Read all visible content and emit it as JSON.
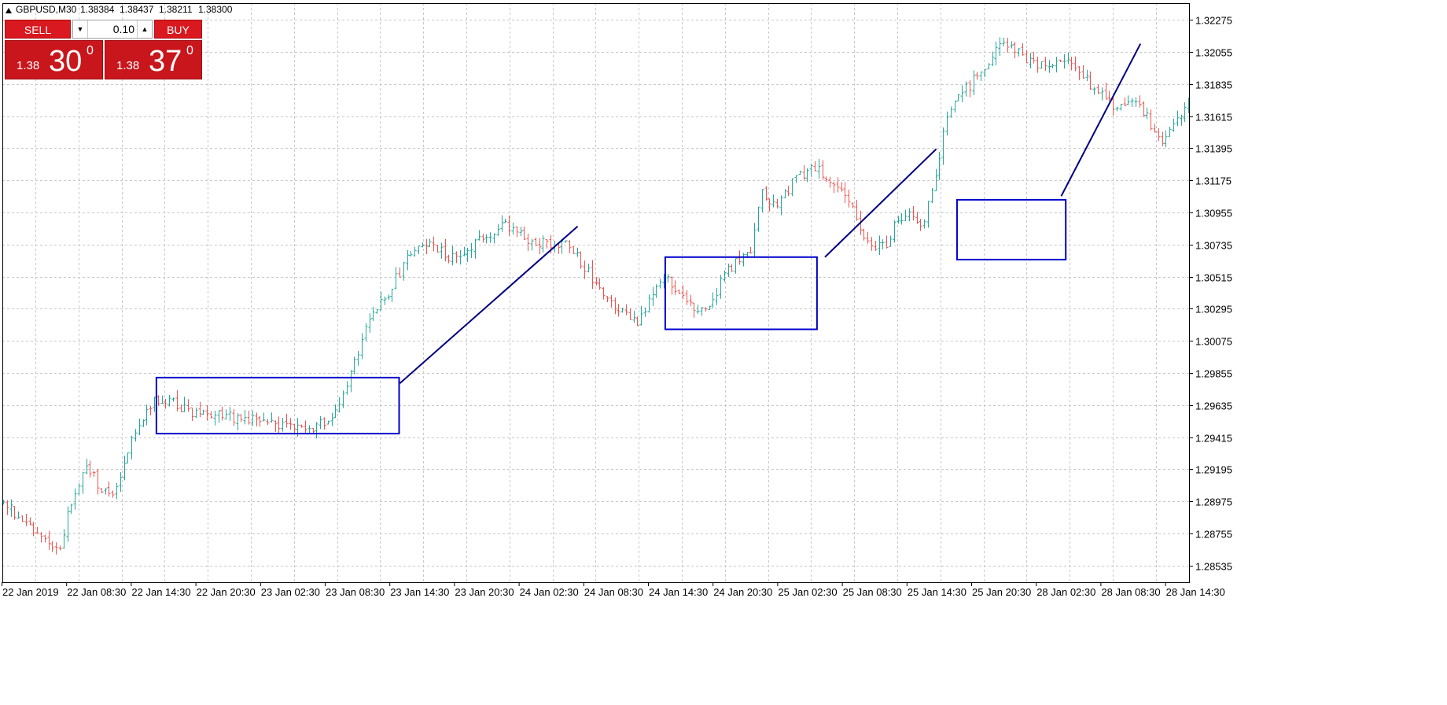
{
  "header": {
    "symbol_text": "GBPUSD,M30",
    "ohlc": [
      "1.38384",
      "1.38437",
      "1.38211",
      "1.38300"
    ]
  },
  "trade_panel": {
    "sell_label": "SELL",
    "buy_label": "BUY",
    "lot": "0.10",
    "sell_price": {
      "small": "1.38",
      "big": "30",
      "sup": "0"
    },
    "buy_price": {
      "small": "1.38",
      "big": "37",
      "sup": "0"
    }
  },
  "colors": {
    "bull": "#26a69a",
    "bear": "#ef5350",
    "grid": "#c8c8c8",
    "box": "#0000cc",
    "trendline": "#000080"
  },
  "chart_data": {
    "type": "candlestick",
    "title": "",
    "symbol": "GBPUSD",
    "timeframe": "M30",
    "xlabel": "",
    "ylabel": "",
    "grid": true,
    "ylim": [
      1.2842,
      1.3239
    ],
    "y_ticks": [
      "1.32275",
      "1.32055",
      "1.31835",
      "1.31615",
      "1.31395",
      "1.31175",
      "1.30955",
      "1.30735",
      "1.30515",
      "1.30295",
      "1.30075",
      "1.29855",
      "1.29635",
      "1.29415",
      "1.29195",
      "1.28975",
      "1.28755",
      "1.28535"
    ],
    "x_ticks": [
      "22 Jan 2019",
      "22 Jan 08:30",
      "22 Jan 14:30",
      "22 Jan 20:30",
      "23 Jan 02:30",
      "23 Jan 08:30",
      "23 Jan 14:30",
      "23 Jan 20:30",
      "24 Jan 02:30",
      "24 Jan 08:30",
      "24 Jan 14:30",
      "24 Jan 20:30",
      "25 Jan 02:30",
      "25 Jan 08:30",
      "25 Jan 14:30",
      "25 Jan 20:30",
      "28 Jan 02:30",
      "28 Jan 08:30",
      "28 Jan 14:30"
    ],
    "anchors": [
      [
        0,
        1.2897
      ],
      [
        10,
        1.2874
      ],
      [
        15,
        1.2865
      ],
      [
        18,
        1.2898
      ],
      [
        22,
        1.2925
      ],
      [
        26,
        1.2905
      ],
      [
        30,
        1.2905
      ],
      [
        34,
        1.294
      ],
      [
        38,
        1.2962
      ],
      [
        42,
        1.2968
      ],
      [
        50,
        1.2959
      ],
      [
        60,
        1.2955
      ],
      [
        68,
        1.2952
      ],
      [
        76,
        1.295
      ],
      [
        80,
        1.2945
      ],
      [
        86,
        1.2955
      ],
      [
        88,
        1.296
      ],
      [
        92,
        1.2985
      ],
      [
        97,
        1.3025
      ],
      [
        101,
        1.3035
      ],
      [
        104,
        1.305
      ],
      [
        108,
        1.3068
      ],
      [
        112,
        1.3075
      ],
      [
        118,
        1.3065
      ],
      [
        124,
        1.3072
      ],
      [
        129,
        1.308
      ],
      [
        133,
        1.3088
      ],
      [
        137,
        1.308
      ],
      [
        142,
        1.3075
      ],
      [
        150,
        1.3073
      ],
      [
        152,
        1.3066
      ],
      [
        156,
        1.305
      ],
      [
        160,
        1.3035
      ],
      [
        164,
        1.3027
      ],
      [
        168,
        1.3021
      ],
      [
        172,
        1.304
      ],
      [
        176,
        1.305
      ],
      [
        180,
        1.304
      ],
      [
        184,
        1.3025
      ],
      [
        187,
        1.303
      ],
      [
        190,
        1.3048
      ],
      [
        194,
        1.3062
      ],
      [
        198,
        1.307
      ],
      [
        201,
        1.311
      ],
      [
        205,
        1.31
      ],
      [
        209,
        1.3115
      ],
      [
        214,
        1.3128
      ],
      [
        218,
        1.312
      ],
      [
        222,
        1.3112
      ],
      [
        225,
        1.3098
      ],
      [
        228,
        1.308
      ],
      [
        231,
        1.3072
      ],
      [
        234,
        1.3075
      ],
      [
        237,
        1.309
      ],
      [
        240,
        1.3095
      ],
      [
        243,
        1.3085
      ],
      [
        246,
        1.3108
      ],
      [
        249,
        1.315
      ],
      [
        252,
        1.3175
      ],
      [
        255,
        1.318
      ],
      [
        259,
        1.3192
      ],
      [
        263,
        1.3208
      ],
      [
        266,
        1.321
      ],
      [
        270,
        1.3203
      ],
      [
        274,
        1.3198
      ],
      [
        278,
        1.3197
      ],
      [
        282,
        1.3203
      ],
      [
        286,
        1.319
      ],
      [
        290,
        1.3178
      ],
      [
        295,
        1.3165
      ],
      [
        300,
        1.3175
      ],
      [
        303,
        1.316
      ],
      [
        307,
        1.3145
      ],
      [
        311,
        1.316
      ],
      [
        314,
        1.3168
      ]
    ],
    "annotations": {
      "rectangles": [
        {
          "x1": 40.6,
          "x2": 104.9,
          "y1": 1.29823,
          "y2": 1.29439
        },
        {
          "x1": 175.4,
          "x2": 215.6,
          "y1": 1.30649,
          "y2": 1.30154
        },
        {
          "x1": 252.7,
          "x2": 281.5,
          "y1": 1.31042,
          "y2": 1.30632
        }
      ],
      "trendlines": [
        {
          "x1": 105.1,
          "y1": 1.29784,
          "x2": 152.2,
          "y2": 1.3086
        },
        {
          "x1": 217.7,
          "y1": 1.30649,
          "x2": 247.2,
          "y2": 1.3139
        },
        {
          "x1": 280.3,
          "y1": 1.31067,
          "x2": 301.3,
          "y2": 1.32112
        }
      ]
    }
  }
}
